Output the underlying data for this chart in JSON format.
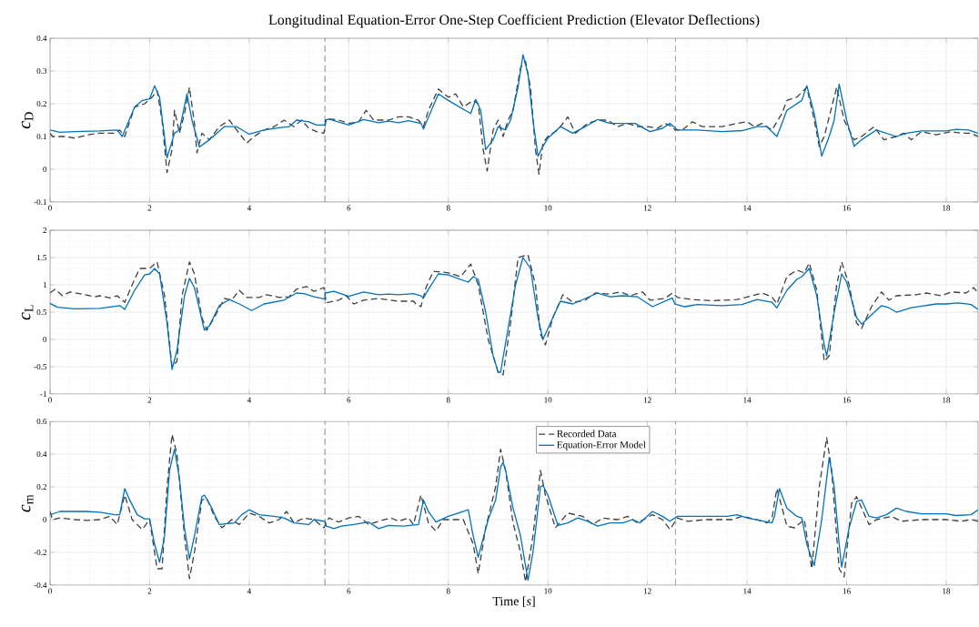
{
  "chart_data": [
    {
      "type": "line",
      "title": "Longitudinal Equation-Error One-Step Coefficient Prediction (Elevator Deflections)",
      "ylabel": "*c*$_{D}$",
      "xlim": [
        0,
        18.64
      ],
      "ylim": [
        -0.1,
        0.4
      ],
      "xticks": [
        0,
        2,
        4,
        6,
        8,
        10,
        12,
        14,
        16,
        18
      ],
      "yticks": [
        -0.1,
        0,
        0.1,
        0.2,
        0.3,
        0.4
      ],
      "grid": true,
      "ref_lines": [
        {
          "axis": "x",
          "value": 5.52,
          "color": "#404040",
          "line_style": "dashed"
        },
        {
          "axis": "x",
          "value": 12.56,
          "color": "#404040",
          "line_style": "dashed"
        }
      ],
      "series": [
        {
          "color": "#404040",
          "line_style": "dashed",
          "x": [
            0,
            0.05,
            0.3,
            0.5,
            0.75,
            1.0,
            1.3,
            1.4,
            1.5,
            1.7,
            1.9,
            2.05,
            2.15,
            2.25,
            2.35,
            2.45,
            2.5,
            2.6,
            2.7,
            2.8,
            2.9,
            2.95,
            3.05,
            3.2,
            3.4,
            3.6,
            3.8,
            3.95,
            4.1,
            4.3,
            4.5,
            4.7,
            4.9,
            5.05,
            5.2,
            5.35,
            5.5,
            5.55,
            5.8,
            6.0,
            6.2,
            6.35,
            6.5,
            6.8,
            7.0,
            7.2,
            7.4,
            7.5,
            7.6,
            7.8,
            8.0,
            8.15,
            8.3,
            8.5,
            8.6,
            8.7,
            8.78,
            8.9,
            9.0,
            9.1,
            9.2,
            9.3,
            9.45,
            9.55,
            9.65,
            9.75,
            9.82,
            9.9,
            10.0,
            10.2,
            10.4,
            10.55,
            10.8,
            11.0,
            11.2,
            11.4,
            11.6,
            11.8,
            12.0,
            12.2,
            12.35,
            12.5,
            12.55,
            12.7,
            12.9,
            13.1,
            13.5,
            13.8,
            14.0,
            14.15,
            14.3,
            14.5,
            14.7,
            14.8,
            15.0,
            15.2,
            15.35,
            15.45,
            15.55,
            15.8,
            15.95,
            16.15,
            16.3,
            16.55,
            16.75,
            17.0,
            17.15,
            17.3,
            17.5,
            17.8,
            18.1,
            18.3,
            18.5,
            18.64
          ],
          "values": [
            0.11,
            0.1,
            0.1,
            0.095,
            0.105,
            0.11,
            0.11,
            0.12,
            0.1,
            0.19,
            0.2,
            0.22,
            0.24,
            0.15,
            -0.01,
            0.06,
            0.18,
            0.11,
            0.17,
            0.25,
            0.14,
            0.05,
            0.11,
            0.09,
            0.13,
            0.15,
            0.11,
            0.08,
            0.1,
            0.12,
            0.13,
            0.15,
            0.13,
            0.15,
            0.125,
            0.115,
            0.11,
            0.155,
            0.15,
            0.14,
            0.145,
            0.18,
            0.15,
            0.15,
            0.16,
            0.16,
            0.15,
            0.13,
            0.18,
            0.245,
            0.22,
            0.23,
            0.19,
            0.21,
            0.2,
            0.06,
            -0.005,
            0.12,
            0.15,
            0.1,
            0.15,
            0.18,
            0.31,
            0.33,
            0.25,
            0.06,
            -0.015,
            0.08,
            0.1,
            0.12,
            0.16,
            0.11,
            0.14,
            0.15,
            0.15,
            0.13,
            0.14,
            0.13,
            0.13,
            0.125,
            0.14,
            0.13,
            0.12,
            0.12,
            0.145,
            0.13,
            0.13,
            0.14,
            0.145,
            0.13,
            0.14,
            0.12,
            0.17,
            0.21,
            0.22,
            0.25,
            0.15,
            0.07,
            0.1,
            0.25,
            0.15,
            0.09,
            0.1,
            0.13,
            0.09,
            0.1,
            0.11,
            0.09,
            0.115,
            0.105,
            0.115,
            0.11,
            0.11,
            0.1
          ]
        },
        {
          "color": "#0072bd",
          "line_style": "solid",
          "x": [
            0,
            0.2,
            0.5,
            1.0,
            1.35,
            1.45,
            1.7,
            1.85,
            2.0,
            2.1,
            2.2,
            2.35,
            2.5,
            2.6,
            2.75,
            2.85,
            3.0,
            3.2,
            3.5,
            3.75,
            4.0,
            4.3,
            4.6,
            4.8,
            4.95,
            5.2,
            5.35,
            5.52,
            5.53,
            5.6,
            6.0,
            6.3,
            6.6,
            6.8,
            7.0,
            7.2,
            7.45,
            7.5,
            7.8,
            8.0,
            8.45,
            8.55,
            8.65,
            8.75,
            8.9,
            9.0,
            9.15,
            9.25,
            9.4,
            9.5,
            9.6,
            9.7,
            9.8,
            9.9,
            10.0,
            10.25,
            10.5,
            10.75,
            11.0,
            11.25,
            11.5,
            11.75,
            12.05,
            12.3,
            12.45,
            12.6,
            13.0,
            13.5,
            13.9,
            14.2,
            14.4,
            14.6,
            14.8,
            15.1,
            15.2,
            15.35,
            15.5,
            15.65,
            15.75,
            15.85,
            16.0,
            16.15,
            16.3,
            16.6,
            17.0,
            17.2,
            17.5,
            18.0,
            18.2,
            18.45,
            18.64
          ],
          "values": [
            0.12,
            0.113,
            0.115,
            0.117,
            0.12,
            0.1,
            0.19,
            0.21,
            0.215,
            0.255,
            0.22,
            0.035,
            0.11,
            0.12,
            0.23,
            0.15,
            0.068,
            0.09,
            0.13,
            0.13,
            0.107,
            0.12,
            0.127,
            0.13,
            0.15,
            0.145,
            0.135,
            0.135,
            0.15,
            0.153,
            0.135,
            0.152,
            0.142,
            0.147,
            0.142,
            0.148,
            0.14,
            0.123,
            0.23,
            0.21,
            0.17,
            0.213,
            0.18,
            0.06,
            0.09,
            0.13,
            0.12,
            0.15,
            0.25,
            0.35,
            0.29,
            0.15,
            0.04,
            0.07,
            0.095,
            0.13,
            0.11,
            0.13,
            0.152,
            0.14,
            0.14,
            0.14,
            0.115,
            0.125,
            0.14,
            0.12,
            0.12,
            0.115,
            0.118,
            0.13,
            0.13,
            0.1,
            0.18,
            0.21,
            0.255,
            0.17,
            0.04,
            0.1,
            0.15,
            0.26,
            0.15,
            0.07,
            0.09,
            0.12,
            0.1,
            0.11,
            0.117,
            0.117,
            0.122,
            0.12,
            0.11
          ]
        }
      ]
    },
    {
      "type": "line",
      "ylabel": "*c*$_{L}$",
      "xlim": [
        0,
        18.64
      ],
      "ylim": [
        -1,
        2
      ],
      "xticks": [
        0,
        2,
        4,
        6,
        8,
        10,
        12,
        14,
        16,
        18
      ],
      "yticks": [
        -1,
        -0.5,
        0,
        0.5,
        1,
        1.5,
        2
      ],
      "grid": true,
      "ref_lines": [
        {
          "axis": "x",
          "value": 5.52,
          "color": "#404040",
          "line_style": "dashed"
        },
        {
          "axis": "x",
          "value": 12.56,
          "color": "#404040",
          "line_style": "dashed"
        }
      ],
      "series": [
        {
          "color": "#404040",
          "line_style": "dashed",
          "x": [
            0,
            0.1,
            0.25,
            0.4,
            0.7,
            0.9,
            1.0,
            1.2,
            1.35,
            1.5,
            1.65,
            1.8,
            2.0,
            2.15,
            2.3,
            2.45,
            2.55,
            2.65,
            2.8,
            2.9,
            3.05,
            3.15,
            3.3,
            3.5,
            3.65,
            3.8,
            3.95,
            4.2,
            4.35,
            4.6,
            4.8,
            4.95,
            5.15,
            5.3,
            5.5,
            5.55,
            5.8,
            5.95,
            6.1,
            6.3,
            6.6,
            7.0,
            7.3,
            7.35,
            7.45,
            7.55,
            7.7,
            8.0,
            8.25,
            8.45,
            8.6,
            8.8,
            9.0,
            9.1,
            9.25,
            9.4,
            9.6,
            9.75,
            9.85,
            9.95,
            10.1,
            10.3,
            10.5,
            10.75,
            10.95,
            11.25,
            11.45,
            11.65,
            11.9,
            12.05,
            12.35,
            12.5,
            12.6,
            12.9,
            13.3,
            13.8,
            14.1,
            14.3,
            14.5,
            14.6,
            14.8,
            15.0,
            15.15,
            15.25,
            15.4,
            15.55,
            15.65,
            15.8,
            15.9,
            16.05,
            16.2,
            16.3,
            16.5,
            16.7,
            16.85,
            17.0,
            17.4,
            17.6,
            17.9,
            18.1,
            18.4,
            18.55,
            18.64
          ],
          "values": [
            0.85,
            0.92,
            0.8,
            0.87,
            0.82,
            0.78,
            0.8,
            0.76,
            0.8,
            0.68,
            1.0,
            1.3,
            1.3,
            1.42,
            0.8,
            -0.5,
            -0.4,
            0.8,
            1.42,
            1.2,
            0.4,
            0.17,
            0.4,
            0.75,
            0.72,
            0.9,
            0.77,
            0.77,
            0.82,
            0.77,
            0.78,
            0.92,
            0.97,
            0.88,
            0.95,
            0.67,
            0.72,
            0.8,
            0.65,
            0.72,
            0.75,
            0.7,
            0.7,
            0.65,
            0.6,
            0.95,
            1.25,
            1.22,
            1.15,
            1.38,
            1.0,
            0.0,
            -0.6,
            -0.65,
            0.3,
            1.5,
            1.55,
            1.0,
            0.1,
            -0.1,
            0.4,
            0.82,
            0.68,
            0.72,
            0.85,
            0.83,
            0.87,
            0.8,
            0.87,
            0.72,
            0.75,
            0.85,
            0.77,
            0.73,
            0.71,
            0.73,
            0.8,
            0.85,
            0.78,
            0.65,
            1.15,
            1.27,
            1.22,
            1.4,
            0.9,
            -0.4,
            -0.3,
            1.0,
            1.42,
            1.0,
            0.3,
            0.2,
            0.6,
            0.87,
            0.72,
            0.8,
            0.82,
            0.85,
            0.8,
            0.87,
            0.85,
            0.95,
            0.85
          ]
        },
        {
          "color": "#0072bd",
          "line_style": "solid",
          "x": [
            0,
            0.15,
            0.5,
            1.0,
            1.4,
            1.5,
            1.7,
            1.9,
            2.0,
            2.1,
            2.2,
            2.35,
            2.45,
            2.55,
            2.7,
            2.8,
            2.9,
            3.1,
            3.2,
            3.4,
            3.6,
            3.8,
            4.05,
            4.3,
            4.7,
            4.95,
            5.1,
            5.3,
            5.52,
            5.53,
            5.7,
            6.0,
            6.3,
            6.6,
            6.8,
            7.0,
            7.3,
            7.45,
            7.5,
            7.6,
            7.8,
            8.0,
            8.4,
            8.5,
            8.6,
            8.75,
            8.9,
            9.0,
            9.05,
            9.2,
            9.35,
            9.5,
            9.65,
            9.8,
            9.9,
            10.0,
            10.25,
            10.5,
            10.75,
            11.0,
            11.25,
            11.5,
            11.8,
            12.1,
            12.3,
            12.5,
            12.55,
            12.75,
            13.0,
            13.5,
            13.9,
            14.2,
            14.5,
            14.6,
            14.8,
            15.0,
            15.1,
            15.25,
            15.4,
            15.55,
            15.6,
            15.75,
            15.9,
            16.0,
            16.2,
            16.3,
            16.5,
            16.7,
            16.85,
            17.0,
            17.3,
            17.8,
            18.0,
            18.25,
            18.5,
            18.64
          ],
          "values": [
            0.66,
            0.59,
            0.56,
            0.57,
            0.62,
            0.55,
            0.9,
            1.18,
            1.2,
            1.3,
            1.2,
            0.3,
            -0.55,
            -0.2,
            0.8,
            1.12,
            0.95,
            0.17,
            0.25,
            0.62,
            0.73,
            0.65,
            0.53,
            0.65,
            0.72,
            0.85,
            0.84,
            0.78,
            0.74,
            0.85,
            0.88,
            0.79,
            0.87,
            0.82,
            0.83,
            0.82,
            0.84,
            0.8,
            0.76,
            0.92,
            1.2,
            1.18,
            1.05,
            1.15,
            1.1,
            0.5,
            -0.3,
            -0.6,
            -0.6,
            0.2,
            1.0,
            1.5,
            1.3,
            0.4,
            0.0,
            0.2,
            0.7,
            0.65,
            0.75,
            0.85,
            0.78,
            0.8,
            0.78,
            0.6,
            0.68,
            0.76,
            0.65,
            0.6,
            0.64,
            0.62,
            0.64,
            0.73,
            0.68,
            0.58,
            0.9,
            1.1,
            1.15,
            1.3,
            0.8,
            -0.1,
            -0.3,
            0.5,
            1.2,
            1.05,
            0.4,
            0.28,
            0.45,
            0.62,
            0.58,
            0.5,
            0.58,
            0.65,
            0.65,
            0.67,
            0.64,
            0.55
          ]
        }
      ]
    },
    {
      "type": "line",
      "xlabel": "Time [*s*]",
      "ylabel": "*c*$_{m}$",
      "xlim": [
        0,
        18.64
      ],
      "ylim": [
        -0.4,
        0.6
      ],
      "xticks": [
        0,
        2,
        4,
        6,
        8,
        10,
        12,
        14,
        16,
        18
      ],
      "yticks": [
        -0.4,
        -0.2,
        0,
        0.2,
        0.4,
        0.6
      ],
      "grid": true,
      "legend": "top",
      "ref_lines": [
        {
          "axis": "x",
          "value": 5.52,
          "color": "#404040",
          "line_style": "dashed"
        },
        {
          "axis": "x",
          "value": 12.56,
          "color": "#404040",
          "line_style": "dashed"
        }
      ],
      "series": [
        {
          "name": "Recorded Data",
          "color": "#404040",
          "line_style": "dashed",
          "x": [
            0,
            0.05,
            0.2,
            0.5,
            0.75,
            1.0,
            1.2,
            1.35,
            1.5,
            1.65,
            1.85,
            2.0,
            2.15,
            2.25,
            2.35,
            2.45,
            2.55,
            2.7,
            2.8,
            2.9,
            3.05,
            3.15,
            3.3,
            3.45,
            3.65,
            3.8,
            4.0,
            4.2,
            4.4,
            4.6,
            4.75,
            4.9,
            5.1,
            5.3,
            5.5,
            5.6,
            5.8,
            6.0,
            6.2,
            6.4,
            6.6,
            6.85,
            7.0,
            7.2,
            7.3,
            7.45,
            7.6,
            7.75,
            7.9,
            8.3,
            8.5,
            8.6,
            8.75,
            8.95,
            9.05,
            9.15,
            9.3,
            9.45,
            9.55,
            9.7,
            9.85,
            9.95,
            10.15,
            10.4,
            10.7,
            10.9,
            11.1,
            11.4,
            11.6,
            11.8,
            12.1,
            12.3,
            12.45,
            12.6,
            12.8,
            13.2,
            13.7,
            13.9,
            14.2,
            14.4,
            14.5,
            14.6,
            14.8,
            14.95,
            15.15,
            15.3,
            15.45,
            15.6,
            15.7,
            15.85,
            15.95,
            16.1,
            16.2,
            16.45,
            16.6,
            16.9,
            17.1,
            17.5,
            18.0,
            18.3,
            18.5,
            18.64
          ],
          "values": [
            0.05,
            0.0,
            0.01,
            0.0,
            -0.005,
            0.0,
            0.02,
            -0.03,
            0.15,
            0.0,
            -0.06,
            0.0,
            -0.3,
            -0.3,
            0.2,
            0.52,
            0.4,
            -0.1,
            -0.36,
            -0.2,
            0.12,
            0.13,
            0.02,
            -0.05,
            0.0,
            -0.03,
            0.04,
            0.02,
            -0.02,
            0.0,
            0.05,
            -0.02,
            0.01,
            0.0,
            -0.05,
            0.01,
            -0.015,
            0.01,
            0.02,
            -0.03,
            -0.01,
            0.01,
            -0.01,
            0.01,
            -0.03,
            0.15,
            -0.02,
            -0.07,
            0.0,
            0.0,
            -0.15,
            -0.33,
            -0.05,
            0.2,
            0.43,
            0.3,
            -0.02,
            -0.2,
            -0.38,
            -0.1,
            0.3,
            0.15,
            -0.05,
            0.04,
            0.02,
            -0.03,
            0.01,
            0.0,
            0.02,
            -0.02,
            0.03,
            0.0,
            -0.06,
            0.01,
            -0.01,
            0.0,
            0.0,
            0.02,
            0.0,
            -0.02,
            0.01,
            0.19,
            -0.04,
            -0.05,
            0.0,
            -0.3,
            0.2,
            0.5,
            0.3,
            -0.3,
            -0.35,
            0.1,
            0.14,
            -0.03,
            0.0,
            0.02,
            -0.01,
            0.0,
            0.0,
            -0.01,
            0.0,
            -0.01
          ]
        },
        {
          "name": "Equation-Error Model",
          "color": "#0072bd",
          "line_style": "solid",
          "x": [
            0,
            0.2,
            0.7,
            1.0,
            1.3,
            1.4,
            1.5,
            1.6,
            1.75,
            1.9,
            2.0,
            2.1,
            2.2,
            2.3,
            2.4,
            2.5,
            2.6,
            2.7,
            2.8,
            2.9,
            3.05,
            3.1,
            3.25,
            3.4,
            3.7,
            3.85,
            4.0,
            4.2,
            4.5,
            4.7,
            4.9,
            5.2,
            5.3,
            5.52,
            5.55,
            5.7,
            5.85,
            6.1,
            6.4,
            6.6,
            6.8,
            7.1,
            7.4,
            7.5,
            7.6,
            7.75,
            8.0,
            8.4,
            8.5,
            8.6,
            8.8,
            8.95,
            9.05,
            9.1,
            9.15,
            9.3,
            9.45,
            9.6,
            9.7,
            9.85,
            9.9,
            10.0,
            10.2,
            10.4,
            10.6,
            10.8,
            11.0,
            11.25,
            11.5,
            11.7,
            11.85,
            12.1,
            12.3,
            12.45,
            12.6,
            12.8,
            13.1,
            13.6,
            13.8,
            14.0,
            14.5,
            14.55,
            14.65,
            14.8,
            15.0,
            15.1,
            15.2,
            15.35,
            15.5,
            15.65,
            15.75,
            15.85,
            15.9,
            16.05,
            16.2,
            16.3,
            16.45,
            16.6,
            16.8,
            17.0,
            17.2,
            17.5,
            18.0,
            18.2,
            18.5,
            18.64
          ],
          "values": [
            0.03,
            0.05,
            0.05,
            0.045,
            0.03,
            0.03,
            0.19,
            0.12,
            0.03,
            0.005,
            0.005,
            -0.15,
            -0.26,
            -0.1,
            0.3,
            0.43,
            0.25,
            -0.05,
            -0.24,
            -0.1,
            0.14,
            0.15,
            0.07,
            -0.03,
            -0.02,
            0.03,
            0.06,
            0.03,
            0.02,
            0.01,
            -0.02,
            -0.03,
            0.0,
            -0.01,
            -0.04,
            -0.055,
            -0.04,
            -0.03,
            -0.015,
            -0.055,
            -0.035,
            -0.04,
            -0.03,
            0.12,
            0.05,
            -0.015,
            0.02,
            0.06,
            -0.1,
            -0.23,
            0.0,
            0.12,
            0.32,
            0.35,
            0.3,
            0.07,
            -0.1,
            -0.37,
            -0.2,
            0.2,
            0.21,
            0.15,
            -0.035,
            -0.02,
            0.01,
            -0.01,
            -0.04,
            -0.02,
            -0.02,
            0.0,
            -0.02,
            0.05,
            0.02,
            -0.01,
            0.02,
            0.02,
            0.02,
            0.02,
            0.03,
            0.01,
            -0.02,
            0.02,
            0.19,
            0.07,
            0.02,
            0.01,
            -0.15,
            -0.28,
            0.0,
            0.38,
            0.2,
            -0.15,
            -0.29,
            -0.05,
            0.11,
            0.12,
            0.02,
            0.01,
            0.03,
            0.07,
            0.05,
            0.035,
            0.035,
            0.025,
            0.03,
            0.06
          ]
        }
      ]
    }
  ]
}
